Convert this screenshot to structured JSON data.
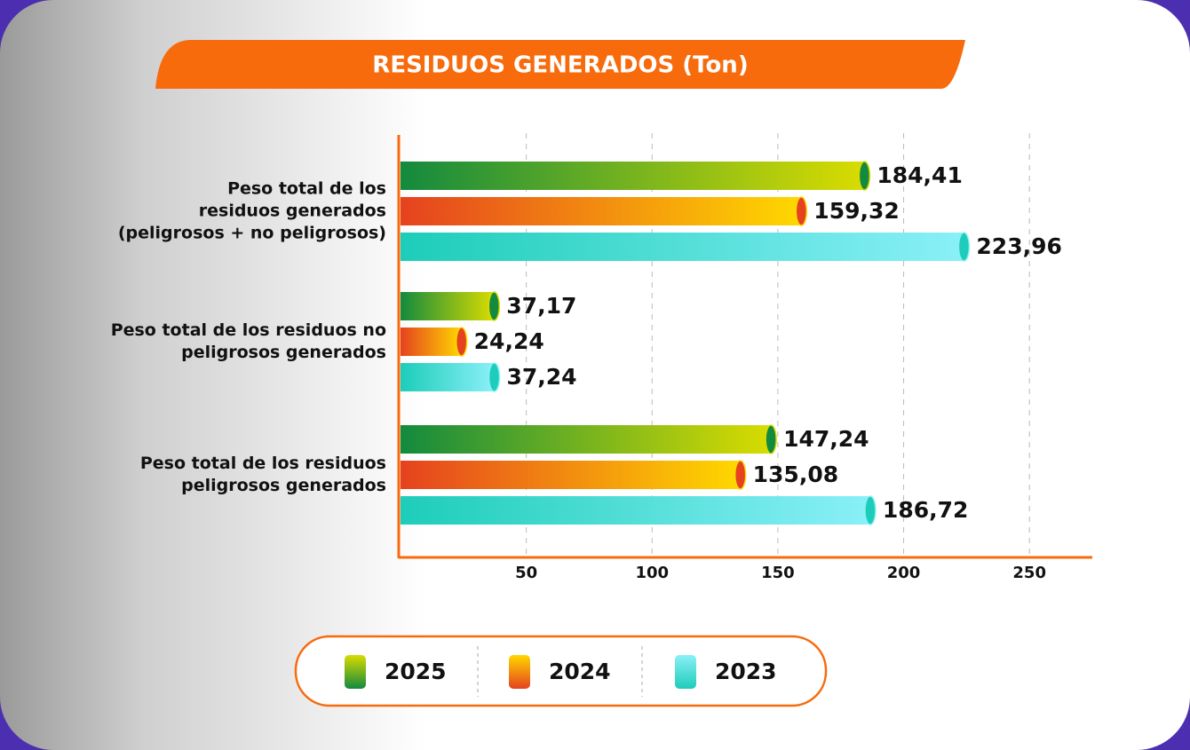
{
  "chart_data": {
    "type": "bar",
    "orientation": "horizontal",
    "title": "RESIDUOS GENERADOS (Ton)",
    "categories": [
      "Peso total de los\nresiduos generados\n(peligrosos + no peligrosos)",
      "Peso total de los residuos no\npeligrosos generados",
      "Peso total de los residuos\npeligrosos generados"
    ],
    "series": [
      {
        "name": "2025",
        "gradient": [
          "#138a3e",
          "#d9dc00"
        ],
        "values": [
          184.41,
          37.17,
          147.24
        ],
        "value_labels": [
          "184,41",
          "37,17",
          "147,24"
        ]
      },
      {
        "name": "2024",
        "gradient": [
          "#e5421f",
          "#ffd800"
        ],
        "values": [
          159.32,
          24.24,
          135.08
        ],
        "value_labels": [
          "159,32",
          "24,24",
          "135,08"
        ]
      },
      {
        "name": "2023",
        "gradient": [
          "#1dcdb9",
          "#8af0f8"
        ],
        "values": [
          223.96,
          37.24,
          186.72
        ],
        "value_labels": [
          "223,96",
          "37,24",
          "186,72"
        ]
      }
    ],
    "xlim": [
      0,
      275
    ],
    "xticks": [
      50,
      100,
      150,
      200,
      250
    ],
    "grid": true,
    "legend": "bottom"
  }
}
